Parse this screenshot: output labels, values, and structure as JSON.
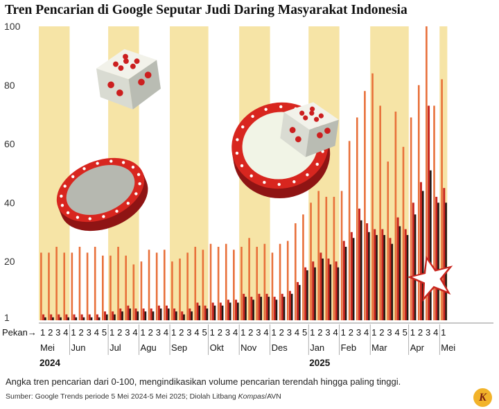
{
  "header": {
    "title": "Tren Pencarian di Google Seputar Judi Daring Masyarakat Indonesia"
  },
  "footer": {
    "note": "Angka tren pencarian dari 0-100, mengindikasikan volume pencarian terendah hingga paling tinggi.",
    "source_prefix": "Sumber: Google Trends periode 5 Mei 2024-5 Mei 2025; Diolah Litbang ",
    "source_italic": "Kompas",
    "source_suffix": "/AVN",
    "logo_letter": "K"
  },
  "colors": {
    "band": "#f6e4a6",
    "orange": "#e8703a",
    "red": "#c8261e",
    "black": "#231815"
  },
  "icons": [
    "dice-icon",
    "casino-chip-icon",
    "star-icon"
  ],
  "chart_data": {
    "type": "bar",
    "title": "Tren Pencarian di Google Seputar Judi Daring Masyarakat Indonesia",
    "xlabel": "Pekan",
    "ylabel": "",
    "ylim": [
      0,
      100
    ],
    "yticks": [
      1,
      20,
      40,
      60,
      80,
      100
    ],
    "grid": false,
    "legend": "none",
    "months": [
      {
        "name": "Mei",
        "weeks": [
          "1",
          "2",
          "3",
          "4"
        ],
        "year": "2024"
      },
      {
        "name": "Jun",
        "weeks": [
          "1",
          "2",
          "3",
          "4",
          "5"
        ]
      },
      {
        "name": "Jul",
        "weeks": [
          "1",
          "2",
          "3",
          "4"
        ]
      },
      {
        "name": "Agu",
        "weeks": [
          "1",
          "2",
          "3",
          "4"
        ]
      },
      {
        "name": "Sep",
        "weeks": [
          "1",
          "2",
          "3",
          "4",
          "5"
        ]
      },
      {
        "name": "Okt",
        "weeks": [
          "1",
          "2",
          "3",
          "4"
        ]
      },
      {
        "name": "Nov",
        "weeks": [
          "1",
          "2",
          "3",
          "4"
        ]
      },
      {
        "name": "Des",
        "weeks": [
          "1",
          "2",
          "3",
          "4",
          "5"
        ]
      },
      {
        "name": "Jan",
        "weeks": [
          "1",
          "2",
          "3",
          "4"
        ],
        "year": "2025"
      },
      {
        "name": "Feb",
        "weeks": [
          "1",
          "2",
          "3",
          "4"
        ]
      },
      {
        "name": "Mar",
        "weeks": [
          "1",
          "2",
          "3",
          "4",
          "5"
        ]
      },
      {
        "name": "Apr",
        "weeks": [
          "1",
          "2",
          "3",
          "4"
        ]
      },
      {
        "name": "Mei",
        "weeks": [
          "1"
        ]
      }
    ],
    "series": [
      {
        "values": [
          23,
          23,
          25,
          23,
          23,
          25,
          23,
          25,
          22,
          22,
          25,
          22,
          19,
          20,
          24,
          23,
          24,
          20,
          21,
          23,
          25,
          24,
          26,
          25,
          26,
          24,
          25,
          28,
          25,
          26,
          23,
          26,
          27,
          33,
          36,
          40,
          44,
          42,
          42,
          44,
          61,
          69,
          78,
          84,
          73,
          54,
          71,
          59,
          69,
          80,
          100,
          73,
          82,
          100,
          86,
          83
        ]
      },
      {
        "values": [
          1,
          1,
          1,
          1,
          1,
          1,
          1,
          1,
          2,
          2,
          3,
          4,
          3,
          3,
          3,
          4,
          4,
          3,
          2,
          3,
          5,
          4,
          5,
          5,
          6,
          6,
          8,
          7,
          8,
          8,
          7,
          8,
          9,
          12,
          17,
          18,
          21,
          19,
          18,
          25,
          28,
          34,
          30,
          29,
          29,
          26,
          32,
          29,
          36,
          44,
          51,
          40,
          40,
          46,
          38,
          30
        ]
      },
      {
        "values": [
          2,
          2,
          2,
          2,
          2,
          2,
          2,
          2,
          3,
          3,
          4,
          5,
          4,
          4,
          4,
          5,
          5,
          4,
          3,
          4,
          6,
          5,
          6,
          6,
          7,
          7,
          9,
          8,
          9,
          9,
          8,
          9,
          10,
          13,
          18,
          20,
          23,
          21,
          20,
          27,
          30,
          38,
          33,
          31,
          31,
          28,
          35,
          31,
          40,
          47,
          73,
          42,
          45,
          49,
          45,
          37
        ]
      }
    ]
  }
}
